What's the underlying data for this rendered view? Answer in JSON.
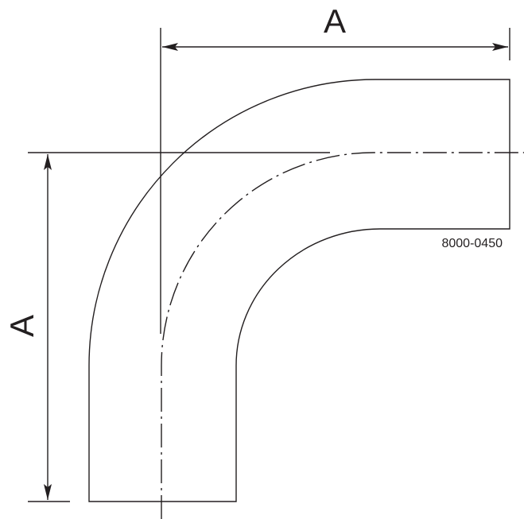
{
  "drawing": {
    "horizontal_dimension_label": "A",
    "vertical_dimension_label": "A",
    "part_number": "8000-0450",
    "line_color": "#231f20"
  }
}
